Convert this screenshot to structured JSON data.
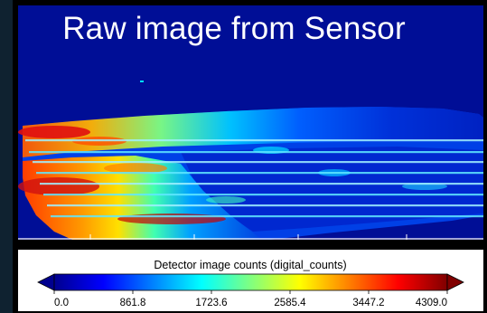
{
  "image_title": "Raw image from Sensor",
  "chart_data": {
    "type": "heatmap",
    "title": "Raw image from Sensor",
    "colorbar": {
      "label": "Detector image counts (digital_counts)",
      "range": [
        0.0,
        4309.0
      ],
      "ticks": [
        "0.0",
        "861.8",
        "1723.6",
        "2585.4",
        "3447.2",
        "4309.0"
      ],
      "colormap": [
        "#00008f",
        "#0000ff",
        "#0080ff",
        "#00ffff",
        "#80ff80",
        "#ffff00",
        "#ff8000",
        "#ff0000",
        "#800000"
      ],
      "extend": "both"
    },
    "background_color": "#000e96"
  }
}
